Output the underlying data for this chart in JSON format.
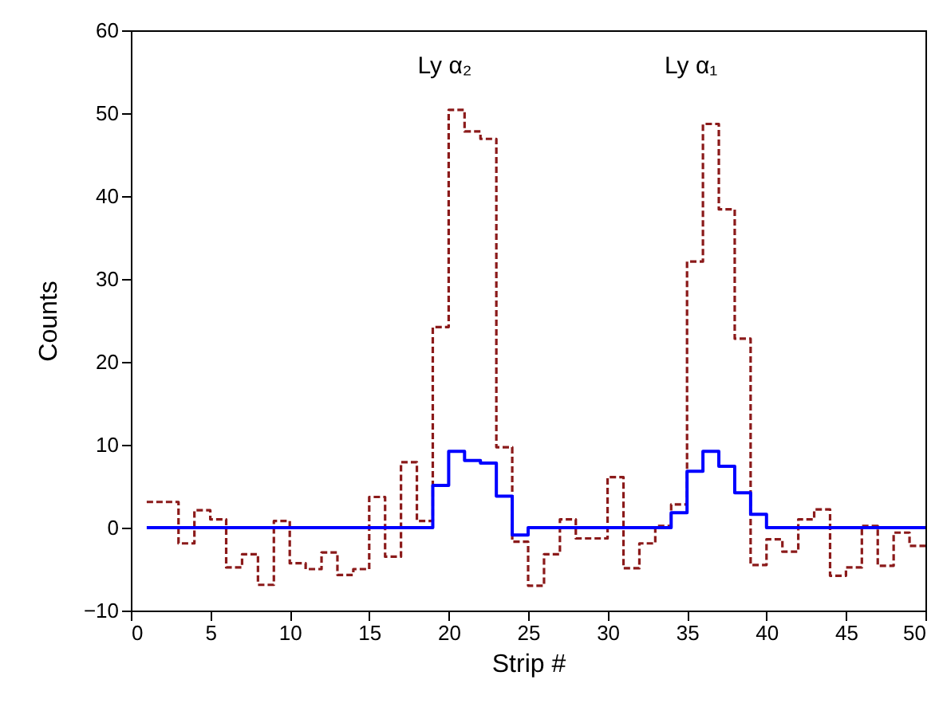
{
  "chart_data": {
    "type": "step",
    "xlabel": "Strip #",
    "ylabel": "Counts",
    "x": [
      1,
      2,
      3,
      4,
      5,
      6,
      7,
      8,
      9,
      10,
      11,
      12,
      13,
      14,
      15,
      16,
      17,
      18,
      19,
      20,
      21,
      22,
      23,
      24,
      25,
      26,
      27,
      28,
      29,
      30,
      31,
      32,
      33,
      34,
      35,
      36,
      37,
      38,
      39,
      40,
      41,
      42,
      43,
      44,
      45,
      46,
      47,
      48,
      49,
      50
    ],
    "series": [
      {
        "color": "#8b1a1a",
        "line_style": "dashed",
        "values": [
          3.1,
          3.1,
          -1.9,
          2.1,
          1.0,
          -4.8,
          -3.2,
          -6.9,
          0.8,
          -4.3,
          -5.0,
          -3.0,
          -5.7,
          -5.0,
          3.7,
          -3.5,
          7.9,
          0.8,
          24.2,
          50.4,
          47.8,
          46.9,
          9.7,
          -1.7,
          -7.0,
          -3.2,
          1.0,
          -1.3,
          -1.3,
          6.1,
          -4.9,
          -1.9,
          0.2,
          2.8,
          32.1,
          48.7,
          38.4,
          22.8,
          -4.5,
          -1.4,
          -2.9,
          1.0,
          2.2,
          -5.8,
          -4.8,
          0.2,
          -4.6,
          -0.6,
          -2.2,
          -2.2
        ]
      },
      {
        "color": "#0000ff",
        "line_style": "solid",
        "values": [
          0,
          0,
          0,
          0,
          0,
          0,
          0,
          0,
          0,
          0,
          0,
          0,
          0,
          0,
          0,
          0,
          0,
          0,
          5.1,
          9.2,
          8.1,
          7.8,
          3.8,
          -0.9,
          0,
          0,
          0,
          0,
          0,
          0,
          0,
          0,
          0,
          1.8,
          6.8,
          9.2,
          7.4,
          4.2,
          1.6,
          0,
          0,
          0,
          0,
          0,
          0,
          0,
          0,
          0,
          0,
          0
        ]
      }
    ],
    "annotations": [
      "Ly α₂",
      "Ly α₁"
    ],
    "xlim": [
      0,
      50
    ],
    "xticks": [
      0,
      5,
      10,
      15,
      20,
      25,
      30,
      35,
      40,
      45,
      50
    ],
    "ylim": [
      -10,
      60
    ],
    "yticks": [
      -10,
      0,
      10,
      20,
      30,
      40,
      50,
      60
    ]
  }
}
